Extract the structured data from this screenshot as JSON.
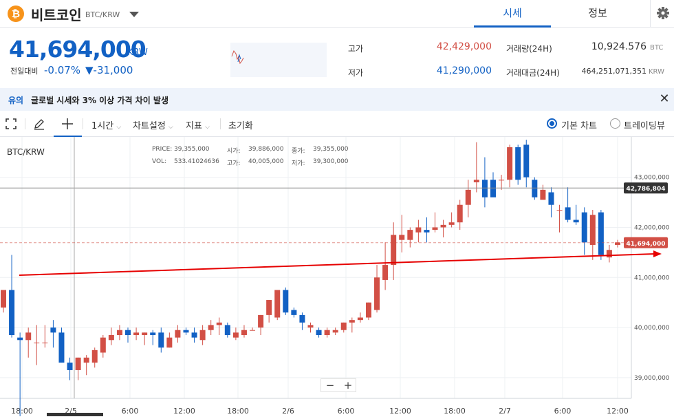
{
  "header": {
    "coin_logo": "₿",
    "coin_name": "비트코인",
    "pair": "BTC/KRW",
    "tabs": [
      {
        "label": "시세",
        "active": true
      },
      {
        "label": "정보",
        "active": false
      }
    ]
  },
  "ticker": {
    "price": "41,694,000",
    "unit": "KRW",
    "change_label": "전일대비",
    "change_rate": "-0.07%",
    "change_amount": "▼-31,000",
    "high_label": "고가",
    "high_value": "42,429,000",
    "low_label": "저가",
    "low_value": "41,290,000",
    "volume_label": "거래량(24H)",
    "volume_value": "10,924.576",
    "volume_unit": "BTC",
    "amount_label": "거래대금(24H)",
    "amount_value": "464,251,071,351",
    "amount_unit": "KRW"
  },
  "notice": {
    "tag": "유의",
    "text": "글로벌 시세와 3% 이상 가격 차이 발생"
  },
  "toolbar": {
    "interval": "1시간",
    "settings": "차트설정",
    "indicators": "지표",
    "reset": "초기화",
    "view_basic": "기본 차트",
    "view_tv": "트레이딩뷰"
  },
  "legend": {
    "symbol": "BTC/KRW",
    "price_label": "PRICE:",
    "price_value": "39,355,000",
    "open_label": "시가:",
    "open_value": "39,886,000",
    "close_label": "종가:",
    "close_value": "39,355,000",
    "vol_label": "VOL:",
    "vol_value": "533.41024636",
    "high_label": "고가:",
    "high_value": "40,005,000",
    "low_label": "저가:",
    "low_value": "39,300,000"
  },
  "colors": {
    "accent": "#1261c4",
    "up": "#d24f45",
    "down": "#1261c4",
    "trendline": "#e60000"
  },
  "chart_data": {
    "type": "candlestick",
    "y_ticks": [
      "43,000,000",
      "42,000,000",
      "41,000,000",
      "40,000,000",
      "39,000,000"
    ],
    "x_ticks": [
      "18:00",
      "2/5",
      "6:00",
      "12:00",
      "18:00",
      "2/6",
      "6:00",
      "12:00",
      "18:00",
      "2/7",
      "6:00",
      "12:00"
    ],
    "crosshair_value": "42,786,804",
    "last_price_label": "41,694,000",
    "ylim": [
      38600000,
      43600000
    ],
    "candles": [
      [
        40400000,
        40750000,
        40300000,
        40750000
      ],
      [
        40750000,
        41450000,
        39800000,
        39850000
      ],
      [
        39800000,
        39900000,
        38150000,
        39750000
      ],
      [
        39750000,
        40000000,
        39400000,
        39900000
      ],
      [
        39700000,
        40050000,
        39250000,
        39700000
      ],
      [
        39700000,
        40050000,
        39600000,
        39700000
      ],
      [
        40000000,
        40150000,
        39600000,
        39900000
      ],
      [
        39900000,
        40000000,
        39300000,
        39300000
      ],
      [
        39300000,
        39400000,
        38950000,
        39150000
      ],
      [
        39150000,
        39400000,
        38950000,
        39400000
      ],
      [
        39300000,
        39450000,
        39050000,
        39400000
      ],
      [
        39300000,
        39600000,
        39200000,
        39550000
      ],
      [
        39500000,
        39850000,
        39400000,
        39800000
      ],
      [
        39750000,
        40000000,
        39650000,
        39850000
      ],
      [
        39850000,
        40050000,
        39750000,
        39950000
      ],
      [
        39950000,
        40000000,
        39700000,
        39850000
      ],
      [
        39850000,
        40000000,
        39750000,
        39900000
      ],
      [
        39850000,
        39900000,
        39650000,
        39900000
      ],
      [
        39900000,
        39950000,
        39650000,
        39850000
      ],
      [
        39900000,
        40000000,
        39500000,
        39600000
      ],
      [
        39600000,
        39900000,
        39600000,
        39800000
      ],
      [
        39800000,
        40050000,
        39700000,
        39950000
      ],
      [
        39950000,
        40000000,
        39850000,
        39900000
      ],
      [
        39900000,
        40000000,
        39700000,
        39800000
      ],
      [
        39750000,
        40050000,
        39650000,
        39950000
      ],
      [
        39950000,
        40150000,
        39850000,
        40050000
      ],
      [
        40050000,
        40200000,
        39850000,
        40100000
      ],
      [
        40050000,
        40100000,
        39800000,
        39850000
      ],
      [
        39800000,
        40000000,
        39750000,
        39900000
      ],
      [
        39850000,
        40050000,
        39800000,
        39950000
      ],
      [
        39950000,
        40000000,
        39950000,
        39950000
      ],
      [
        40000000,
        40250000,
        39850000,
        40250000
      ],
      [
        40250000,
        40550000,
        40100000,
        40550000
      ],
      [
        40200000,
        40750000,
        40150000,
        40750000
      ],
      [
        40750000,
        40800000,
        40250000,
        40300000
      ],
      [
        40350000,
        40400000,
        40200000,
        40250000
      ],
      [
        40250000,
        40300000,
        39950000,
        40100000
      ],
      [
        40000000,
        40100000,
        39900000,
        40050000
      ],
      [
        39950000,
        40000000,
        39800000,
        39850000
      ],
      [
        39850000,
        40000000,
        39800000,
        39950000
      ],
      [
        39900000,
        40000000,
        39850000,
        39950000
      ],
      [
        39950000,
        40100000,
        39900000,
        40100000
      ],
      [
        40100000,
        40200000,
        39900000,
        40150000
      ],
      [
        40150000,
        40300000,
        40100000,
        40200000
      ],
      [
        40200000,
        40500000,
        40150000,
        40500000
      ],
      [
        40350000,
        41250000,
        40300000,
        41000000
      ],
      [
        40950000,
        41700000,
        40750000,
        41250000
      ],
      [
        41250000,
        42100000,
        40950000,
        41850000
      ],
      [
        41750000,
        42250000,
        41500000,
        41850000
      ],
      [
        41750000,
        42000000,
        41600000,
        41950000
      ],
      [
        41900000,
        42150000,
        41700000,
        42000000
      ],
      [
        41950000,
        42200000,
        41700000,
        41900000
      ],
      [
        41950000,
        42300000,
        41900000,
        42000000
      ],
      [
        42000000,
        42150000,
        41800000,
        42050000
      ],
      [
        42050000,
        42300000,
        42000000,
        42100000
      ],
      [
        42100000,
        42550000,
        41950000,
        42450000
      ],
      [
        42450000,
        42950000,
        42200000,
        42750000
      ],
      [
        42900000,
        43700000,
        42700000,
        42950000
      ],
      [
        42950000,
        43400000,
        42400000,
        42600000
      ],
      [
        42950000,
        43100000,
        42650000,
        42600000
      ],
      [
        42950000,
        43050000,
        42750000,
        42950000
      ],
      [
        42950000,
        43650000,
        42800000,
        43600000
      ],
      [
        43600000,
        43650000,
        42850000,
        42950000
      ],
      [
        43650000,
        43750000,
        42800000,
        43000000
      ],
      [
        42950000,
        43000000,
        42550000,
        42600000
      ],
      [
        42550000,
        42850000,
        42550000,
        42750000
      ],
      [
        42700000,
        42800000,
        42200000,
        42450000
      ],
      [
        42350000,
        42450000,
        41900000,
        42350000
      ],
      [
        42400000,
        42800000,
        42100000,
        42150000
      ],
      [
        42150000,
        42450000,
        42050000,
        42100000
      ],
      [
        42300000,
        42400000,
        41450000,
        41700000
      ],
      [
        41650000,
        42350000,
        41350000,
        42250000
      ],
      [
        42300000,
        42350000,
        41350000,
        41450000
      ],
      [
        41400000,
        41650000,
        41300000,
        41550000
      ],
      [
        41650000,
        41750000,
        41600000,
        41700000
      ]
    ]
  }
}
